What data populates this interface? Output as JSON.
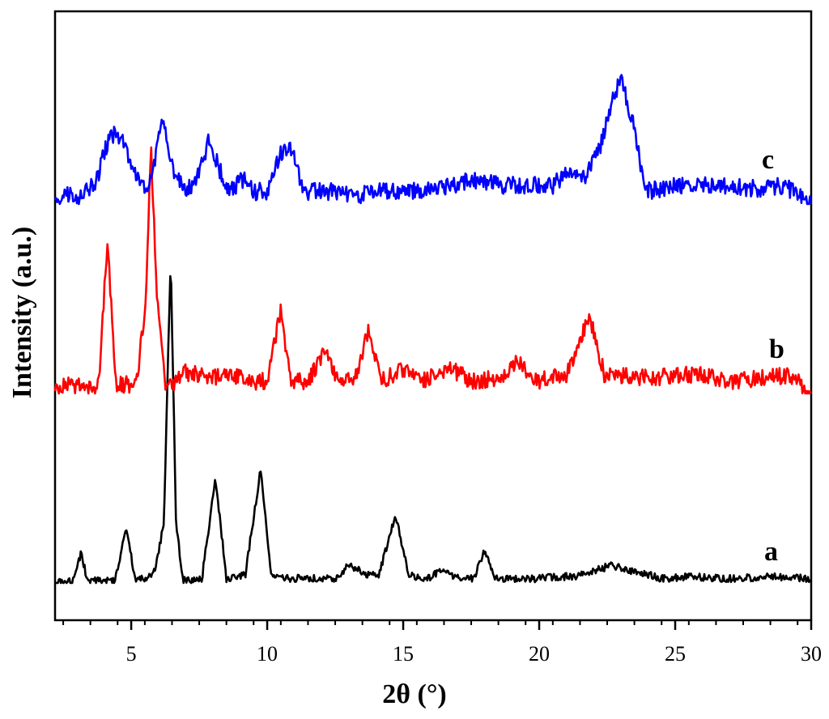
{
  "chart_data": {
    "type": "line",
    "xlabel": "2θ (°)",
    "ylabel": "Intensity (a.u.)",
    "xlim": [
      2.2,
      30
    ],
    "x_ticks": [
      5,
      10,
      15,
      20,
      25,
      30
    ],
    "x_tick_labels": [
      "5",
      "10",
      "15",
      "20",
      "25",
      "30"
    ],
    "y_ticks_shown": false,
    "grid": false,
    "legend": "none (series labeled directly at right end)",
    "series": [
      {
        "name": "a",
        "color": "#000000",
        "baseline": 0,
        "points": [
          [
            2.2,
            0
          ],
          [
            2.9,
            0.3
          ],
          [
            3.15,
            4
          ],
          [
            3.4,
            0.3
          ],
          [
            4.4,
            0.3
          ],
          [
            4.83,
            7.5
          ],
          [
            5.15,
            0.3
          ],
          [
            5.8,
            1
          ],
          [
            6.0,
            4
          ],
          [
            6.2,
            8
          ],
          [
            6.45,
            43
          ],
          [
            6.65,
            8
          ],
          [
            6.9,
            0.3
          ],
          [
            7.6,
            0.6
          ],
          [
            8.1,
            14
          ],
          [
            8.5,
            0.6
          ],
          [
            9.2,
            1.2
          ],
          [
            9.75,
            15
          ],
          [
            10.15,
            1.2
          ],
          [
            10.7,
            0.6
          ],
          [
            11.5,
            0.6
          ],
          [
            12.5,
            0.6
          ],
          [
            13.05,
            2.5
          ],
          [
            13.6,
            1
          ],
          [
            14.1,
            1
          ],
          [
            14.72,
            9
          ],
          [
            15.2,
            1
          ],
          [
            15.9,
            0.6
          ],
          [
            16.4,
            1.8
          ],
          [
            16.9,
            0.6
          ],
          [
            17.6,
            0.6
          ],
          [
            18.0,
            4.5
          ],
          [
            18.4,
            0.6
          ],
          [
            20.0,
            0.6
          ],
          [
            21.5,
            1
          ],
          [
            22.6,
            2.3
          ],
          [
            23.3,
            1.7
          ],
          [
            24.5,
            0.6
          ],
          [
            25.5,
            0.8
          ],
          [
            27.0,
            0.6
          ],
          [
            28.5,
            0.8
          ],
          [
            30,
            0.6
          ]
        ]
      },
      {
        "name": "b",
        "color": "#ff0000",
        "baseline": 0,
        "points": [
          [
            2.2,
            0
          ],
          [
            2.5,
            1.5
          ],
          [
            3.5,
            1
          ],
          [
            3.8,
            1.5
          ],
          [
            4.12,
            25
          ],
          [
            4.45,
            1.5
          ],
          [
            5.2,
            1.5
          ],
          [
            5.55,
            16
          ],
          [
            5.72,
            41
          ],
          [
            5.95,
            16
          ],
          [
            6.25,
            0.8
          ],
          [
            6.6,
            2
          ],
          [
            7.0,
            3.5
          ],
          [
            7.5,
            3
          ],
          [
            8.0,
            2.5
          ],
          [
            8.5,
            3
          ],
          [
            9.0,
            2.5
          ],
          [
            9.5,
            2
          ],
          [
            10.0,
            2
          ],
          [
            10.5,
            14
          ],
          [
            10.85,
            2
          ],
          [
            11.5,
            2
          ],
          [
            12.15,
            7
          ],
          [
            12.6,
            2
          ],
          [
            13.2,
            2
          ],
          [
            13.75,
            11
          ],
          [
            14.15,
            2
          ],
          [
            15.1,
            4
          ],
          [
            15.6,
            2
          ],
          [
            16.8,
            4
          ],
          [
            17.5,
            2
          ],
          [
            18.5,
            2.5
          ],
          [
            19.3,
            5.5
          ],
          [
            19.8,
            2
          ],
          [
            21.0,
            3
          ],
          [
            21.85,
            13
          ],
          [
            22.4,
            3
          ],
          [
            23.2,
            3
          ],
          [
            24.0,
            2.5
          ],
          [
            25.0,
            3
          ],
          [
            26.0,
            3
          ],
          [
            27.0,
            2
          ],
          [
            28.0,
            2.5
          ],
          [
            29.0,
            3
          ],
          [
            29.5,
            2
          ],
          [
            30,
            0
          ]
        ]
      },
      {
        "name": "c",
        "color": "#0000ff",
        "baseline": 0,
        "points": [
          [
            2.2,
            0
          ],
          [
            2.7,
            1.5
          ],
          [
            3.2,
            1.2
          ],
          [
            3.7,
            3.5
          ],
          [
            4.2,
            11
          ],
          [
            4.6,
            11
          ],
          [
            5.0,
            6
          ],
          [
            5.5,
            2
          ],
          [
            5.8,
            5
          ],
          [
            6.15,
            14
          ],
          [
            6.5,
            6
          ],
          [
            7.0,
            2
          ],
          [
            7.4,
            4
          ],
          [
            7.85,
            10
          ],
          [
            8.3,
            5
          ],
          [
            8.6,
            2
          ],
          [
            9.1,
            4
          ],
          [
            9.5,
            2
          ],
          [
            10.0,
            2
          ],
          [
            10.5,
            8
          ],
          [
            10.9,
            9
          ],
          [
            11.3,
            2
          ],
          [
            12.5,
            2
          ],
          [
            13.5,
            1.5
          ],
          [
            14.0,
            2
          ],
          [
            15.0,
            2
          ],
          [
            16.0,
            2.5
          ],
          [
            17.0,
            3
          ],
          [
            17.5,
            4
          ],
          [
            18.5,
            3
          ],
          [
            19.5,
            3
          ],
          [
            20.5,
            3
          ],
          [
            21.0,
            5
          ],
          [
            21.7,
            4
          ],
          [
            22.3,
            10
          ],
          [
            22.7,
            17
          ],
          [
            23.0,
            20
          ],
          [
            23.4,
            14
          ],
          [
            23.9,
            2
          ],
          [
            25.0,
            3
          ],
          [
            26.5,
            3
          ],
          [
            28.0,
            2.5
          ],
          [
            29.0,
            3
          ],
          [
            30,
            0
          ]
        ]
      }
    ],
    "label_positions_note": "series labels drawn at right end of each curve"
  }
}
